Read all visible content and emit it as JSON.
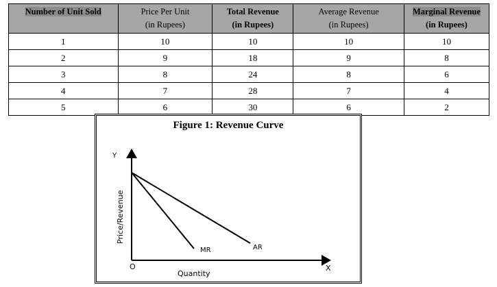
{
  "table": {
    "headers": [
      {
        "line1": "Number of Unit Sold",
        "line2": ""
      },
      {
        "line1": "Price Per Unit",
        "line2": "(in Rupees)"
      },
      {
        "line1": "Total Revenue",
        "line2": "(in Rupees)"
      },
      {
        "line1": "Average Revenue",
        "line2": "(in Rupees)"
      },
      {
        "line1": "Marginal Revenue",
        "line2": "(in Rupees)"
      }
    ],
    "rows": [
      [
        "1",
        "10",
        "10",
        "10",
        "10"
      ],
      [
        "2",
        "9",
        "18",
        "9",
        "8"
      ],
      [
        "3",
        "8",
        "24",
        "8",
        "6"
      ],
      [
        "4",
        "7",
        "28",
        "7",
        "4"
      ],
      [
        "5",
        "6",
        "30",
        "6",
        "2"
      ]
    ]
  },
  "figure": {
    "title": "Figure 1: Revenue Curve",
    "y_axis_letter": "Y",
    "x_axis_letter": "X",
    "origin": "O",
    "y_label": "Price/Revenue",
    "x_label": "Quantity",
    "curves": [
      "MR",
      "AR"
    ]
  }
}
